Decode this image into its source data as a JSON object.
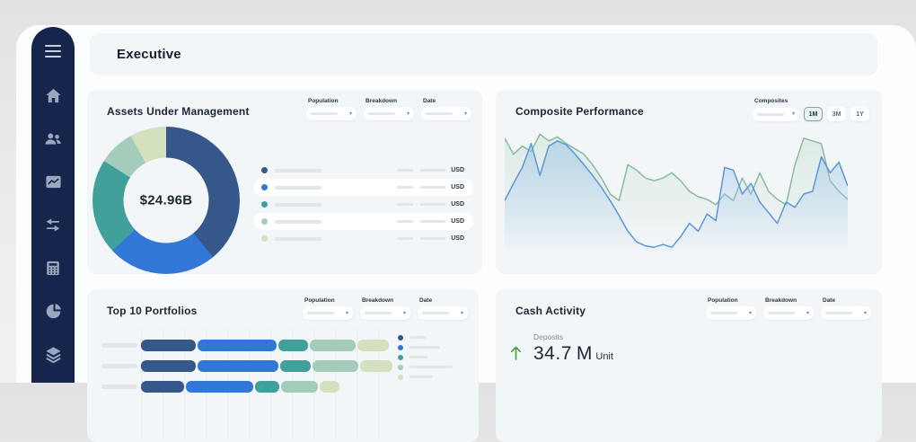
{
  "header": {
    "title": "Executive"
  },
  "sidebar": {
    "icons": [
      "menu",
      "home",
      "clients",
      "performance",
      "transfers",
      "calculator",
      "allocation",
      "layers"
    ]
  },
  "filter_labels": {
    "population": "Population",
    "breakdown": "Breakdown",
    "date": "Date"
  },
  "cards": {
    "aum": {
      "title": "Assets Under Management",
      "center_value": "$24.96B",
      "currency": "USD"
    },
    "composite": {
      "title": "Composite Performance",
      "composites_label": "Composites",
      "range_buttons": [
        "1M",
        "3M",
        "1Y"
      ],
      "selected_range": "1M"
    },
    "top10": {
      "title": "Top 10 Portfolios"
    },
    "cash": {
      "title": "Cash Activity",
      "kpi": {
        "label": "Deposits",
        "value": "34.7",
        "unit": "M",
        "unit_suffix": "Unit",
        "trend": "up"
      }
    }
  },
  "palette": {
    "sidebar": "#16254c",
    "card_bg": "#f3f6f9",
    "navy": "#35578a",
    "blue": "#3377d6",
    "teal": "#41a19a",
    "sage": "#a3cdba",
    "pale_green": "#d3e1bf",
    "line_blue": "#5b97d6",
    "line_green": "#8abb9e",
    "trend_green": "#55a345",
    "skeleton": "#e2e6eb"
  },
  "chart_data": [
    {
      "id": "aum-donut",
      "type": "pie",
      "title": "Assets Under Management",
      "center_label": "$24.96B",
      "values": [
        39,
        24,
        21,
        8,
        8
      ],
      "labels": [
        "segment-1",
        "segment-2",
        "segment-3",
        "segment-4",
        "segment-5"
      ],
      "colors": [
        "#35578a",
        "#3377d6",
        "#41a19a",
        "#a3cdba",
        "#d3e1bf"
      ],
      "legend": {
        "position": "right",
        "rows": 5,
        "value_suffix": "USD",
        "text_placeholders": true
      }
    },
    {
      "id": "composite-performance",
      "type": "line",
      "title": "Composite Performance",
      "x_count": 40,
      "ylim": [
        0,
        100
      ],
      "area_fill": true,
      "axes_hidden": true,
      "series": [
        {
          "name": "composite-green",
          "color": "#8abb9e",
          "values": [
            92,
            80,
            86,
            82,
            95,
            90,
            93,
            88,
            84,
            80,
            72,
            62,
            50,
            45,
            72,
            68,
            62,
            60,
            62,
            66,
            60,
            52,
            48,
            46,
            42,
            50,
            45,
            62,
            50,
            66,
            52,
            46,
            42,
            72,
            92,
            90,
            88,
            60,
            52,
            46
          ]
        },
        {
          "name": "composite-blue",
          "color": "#5b97d6",
          "values": [
            45,
            58,
            70,
            88,
            64,
            86,
            90,
            87,
            80,
            72,
            64,
            55,
            45,
            34,
            22,
            14,
            11,
            10,
            12,
            10,
            18,
            28,
            22,
            35,
            30,
            70,
            68,
            50,
            58,
            44,
            36,
            28,
            44,
            40,
            50,
            52,
            78,
            66,
            74,
            56
          ]
        }
      ]
    },
    {
      "id": "top-10-portfolios",
      "type": "bar",
      "orientation": "horizontal-stacked",
      "title": "Top 10 Portfolios",
      "visible_rows": 3,
      "rows": [
        [
          61,
          88,
          33,
          51,
          35
        ],
        [
          61,
          90,
          34,
          51,
          36
        ],
        [
          48,
          75,
          27,
          41,
          22
        ]
      ],
      "colors": [
        "#35578a",
        "#3377d6",
        "#41a19a",
        "#a3cdba",
        "#d3e1bf"
      ],
      "legend": {
        "position": "right",
        "entries": 5,
        "text_placeholders": true
      }
    },
    {
      "id": "cash-activity",
      "type": "kpi",
      "title": "Cash Activity",
      "metric": {
        "label": "Deposits",
        "value": 34.7,
        "unit": "M",
        "unit_suffix": "Unit",
        "trend": "up"
      }
    }
  ]
}
